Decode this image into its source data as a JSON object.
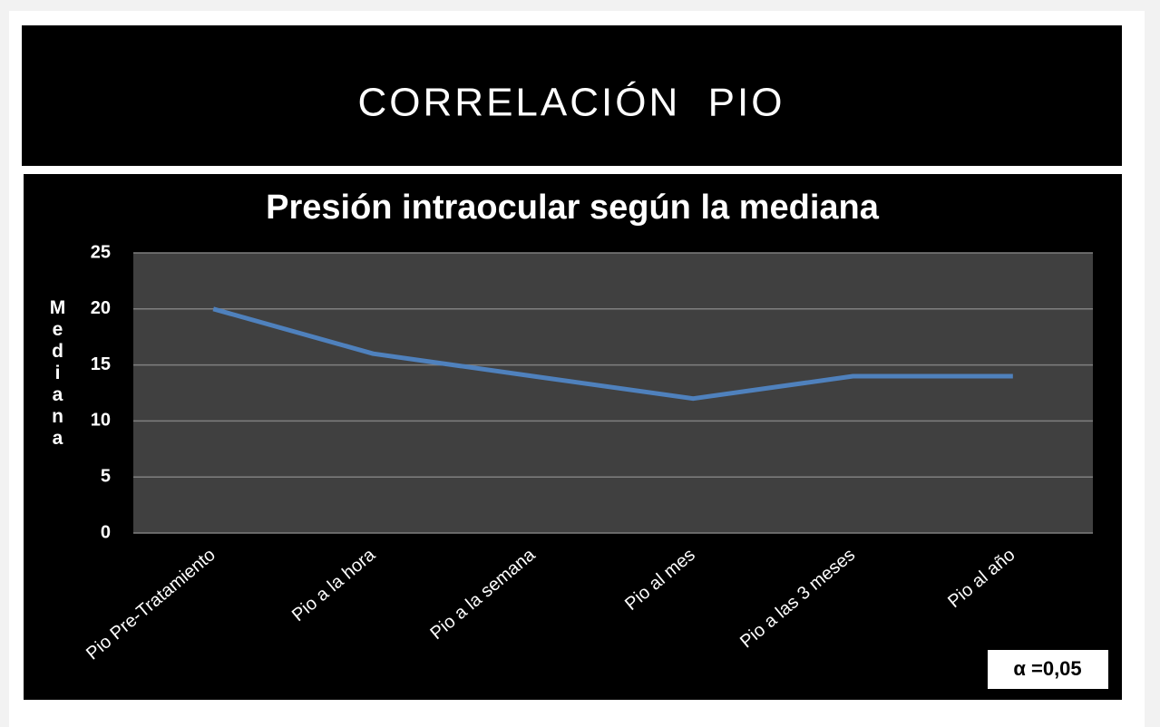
{
  "slide_title": "CORRELACIÓN  PIO",
  "chart_data": {
    "type": "line",
    "title": "Presión intraocular según la mediana",
    "y_label": "Mediana",
    "categories": [
      "Pio Pre-Tratamiento",
      "Pio a la hora",
      "Pio a la semana",
      "Pio al mes",
      "Pio a las 3 meses",
      "Pio al año"
    ],
    "series": [
      {
        "name": "Mediana",
        "color": "#4f81bd",
        "values": [
          20,
          16,
          14,
          12,
          14,
          14
        ]
      }
    ],
    "ylim": [
      0,
      25
    ],
    "yticks": [
      0,
      5,
      10,
      15,
      20,
      25
    ],
    "grid": true,
    "annotation": "α =0,05"
  }
}
